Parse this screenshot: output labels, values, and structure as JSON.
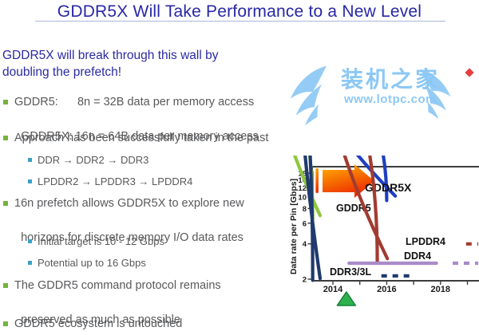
{
  "title": "GDDR5X Will Take Performance to a New Level",
  "subtitle": {
    "line1": "GDDR5X will break through this wall by",
    "line2": "doubling the prefetch!"
  },
  "bullets": [
    {
      "level": 1,
      "lines": [
        "GDDR5:      8n = 32B data per memory access",
        "GDDR5X: 16n = 64B data per memory access"
      ]
    },
    {
      "level": 1,
      "lines": [
        "Approach has been successfully taken in the past"
      ]
    },
    {
      "level": 2,
      "lines": [
        "DDR → DDR2 → DDR3"
      ]
    },
    {
      "level": 2,
      "lines": [
        "LPDDR2 → LPDDR3 → LPDDR4"
      ]
    },
    {
      "level": 1,
      "lines": [
        "16n prefetch allows GDDR5X to explore new",
        "horizons for discrete memory I/O data rates"
      ]
    },
    {
      "level": 2,
      "lines": [
        "Initial target is 10 - 12 Gbps"
      ]
    },
    {
      "level": 2,
      "lines": [
        "Potential up to 16 Gbps"
      ]
    },
    {
      "level": 1,
      "lines": [
        "The GDDR5 command protocol remains",
        "preserved as much as possible"
      ]
    },
    {
      "level": 1,
      "lines": [
        "GDDR5 ecosystem is untouched"
      ]
    }
  ],
  "colors": {
    "title_blue": "#2827a6",
    "body_gray": "#58595b",
    "bullet_level1_green": "#76b23c",
    "bullet_level2_teal": "#3ba0c8",
    "watermark_blue": "#8cc8f5"
  },
  "watermark": {
    "name_cn": "装机之家",
    "url": "www.lotpc.com"
  },
  "chart_data": {
    "type": "line",
    "ylabel": "Data rate per Pin [Gbps]",
    "y_scale": "log2",
    "ylim": [
      2,
      16
    ],
    "y_ticks": [
      2,
      4,
      6,
      8,
      10,
      12,
      14,
      16
    ],
    "x_ticks": [
      2014,
      2015,
      2016,
      2017,
      2018,
      2019
    ],
    "x_tick_labels": [
      "2014",
      "2016",
      "2018"
    ],
    "xlim": [
      2013.2,
      2019.4
    ],
    "grid": false,
    "legend_position": "inline-labels",
    "series": [
      {
        "name": "GDDR5X",
        "color": "#1f3fbf",
        "points": [
          [
            2016.0,
            9.5
          ],
          [
            2016.5,
            10.9
          ],
          [
            2017.1,
            12.8
          ],
          [
            2017.8,
            14.3
          ],
          [
            2018.6,
            15.4
          ],
          [
            2019.35,
            16.0
          ]
        ],
        "dashed_points": []
      },
      {
        "name": "GDDR5",
        "color": "#8dc63f",
        "points": [
          [
            2013.25,
            6.9
          ],
          [
            2013.7,
            7.6
          ],
          [
            2014.3,
            7.95
          ],
          [
            2015.2,
            8.0
          ],
          [
            2019.4,
            8.05
          ]
        ],
        "dashed_points": []
      },
      {
        "name": "LPDDR4",
        "color": "#a23b30",
        "points": [
          [
            2015.65,
            3.25
          ],
          [
            2016.2,
            3.6
          ],
          [
            2016.7,
            4.25
          ],
          [
            2017.1,
            4.5
          ],
          [
            2018.6,
            4.55
          ]
        ],
        "dashed_points": [
          [
            2018.95,
            4.6
          ],
          [
            2019.4,
            4.6
          ]
        ]
      },
      {
        "name": "DDR4",
        "color": "#a98bc8",
        "points": [
          [
            2014.6,
            3.2
          ],
          [
            2017.85,
            3.2
          ]
        ],
        "dashed_points": [
          [
            2018.45,
            3.2
          ],
          [
            2019.4,
            3.2
          ]
        ]
      },
      {
        "name": "DDR3/3L",
        "color": "#1f3a6e",
        "points": [
          [
            2013.25,
            2.02
          ],
          [
            2013.7,
            2.12
          ],
          [
            2014.3,
            2.2
          ],
          [
            2015.55,
            2.2
          ]
        ],
        "dashed_points": [
          [
            2015.8,
            2.2
          ],
          [
            2016.85,
            2.2
          ]
        ]
      }
    ],
    "annotations": {
      "breakthrough_arrow": {
        "meaning": "wall being broken through",
        "colors": [
          "#ffb400",
          "#ee2a00"
        ],
        "y_span": [
          11,
          16
        ],
        "x_span": [
          2013.2,
          2015.6
        ]
      },
      "now_triangle": {
        "year": 2014.5,
        "color": "#2eb14c"
      }
    }
  }
}
